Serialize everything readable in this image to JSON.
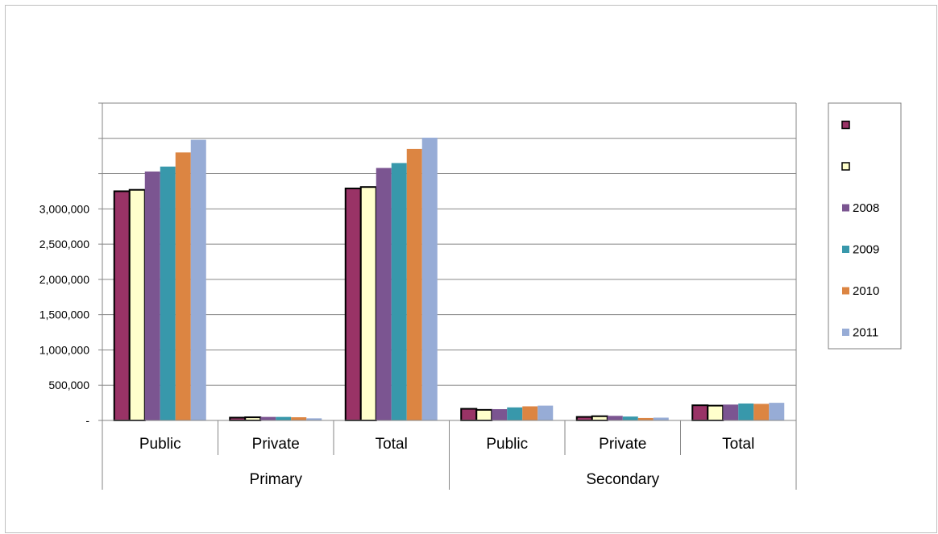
{
  "chart_data": {
    "type": "bar",
    "title": "",
    "xlabel": "",
    "ylabel": "",
    "ylim": [
      0,
      4500000
    ],
    "grid": true,
    "legend_position": "right",
    "y_ticks": [
      {
        "value": 0,
        "label": "-"
      },
      {
        "value": 500000,
        "label": "500,000"
      },
      {
        "value": 1000000,
        "label": "1,000,000"
      },
      {
        "value": 1500000,
        "label": "1,500,000"
      },
      {
        "value": 2000000,
        "label": "2,000,000"
      },
      {
        "value": 2500000,
        "label": "2,500,000"
      },
      {
        "value": 3000000,
        "label": "3,000,000"
      },
      {
        "value": 3500000,
        "label": ""
      },
      {
        "value": 4000000,
        "label": ""
      },
      {
        "value": 4500000,
        "label": ""
      }
    ],
    "groups": [
      {
        "name": "Primary",
        "categories": [
          "Public",
          "Private",
          "Total"
        ]
      },
      {
        "name": "Secondary",
        "categories": [
          "Public",
          "Private",
          "Total"
        ]
      }
    ],
    "categories": [
      "Public",
      "Private",
      "Total",
      "Public",
      "Private",
      "Total"
    ],
    "series": [
      {
        "name": "",
        "color": "#993366",
        "outline": true,
        "values": [
          3250000,
          40000,
          3290000,
          165000,
          50000,
          215000
        ]
      },
      {
        "name": "",
        "color": "#ffffcc",
        "outline": true,
        "values": [
          3270000,
          45000,
          3310000,
          150000,
          60000,
          210000
        ]
      },
      {
        "name": "2008",
        "color": "#7b5591",
        "outline": false,
        "values": [
          3530000,
          50000,
          3580000,
          160000,
          65000,
          225000
        ]
      },
      {
        "name": "2009",
        "color": "#3898ab",
        "outline": false,
        "values": [
          3600000,
          50000,
          3650000,
          185000,
          55000,
          240000
        ]
      },
      {
        "name": "2010",
        "color": "#dc8542",
        "outline": false,
        "values": [
          3800000,
          45000,
          3850000,
          200000,
          35000,
          235000
        ]
      },
      {
        "name": "2011",
        "color": "#97acd6",
        "outline": false,
        "values": [
          3980000,
          30000,
          4010000,
          210000,
          40000,
          250000
        ]
      }
    ]
  }
}
